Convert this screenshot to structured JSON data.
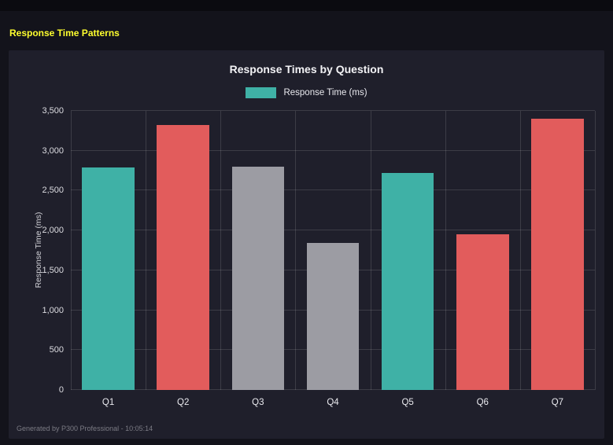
{
  "page": {
    "title": "Response Time Patterns",
    "footer": "Generated by P300 Professional - 10:05:14"
  },
  "colors": {
    "page_bg": "#13131b",
    "panel_bg": "#1f1f2b",
    "title_yellow": "#ffff2e",
    "teal": "#3fb1a6",
    "red": "#e25c5c",
    "gray": "#9c9ca3"
  },
  "chart_data": {
    "type": "bar",
    "title": "Response Times by Question",
    "legend": "Response Time (ms)",
    "legend_position": "top",
    "ylabel": "Response Time (ms)",
    "xlabel": "",
    "categories": [
      "Q1",
      "Q2",
      "Q3",
      "Q4",
      "Q5",
      "Q6",
      "Q7"
    ],
    "values": [
      2790,
      3320,
      2800,
      1840,
      2720,
      1950,
      3400
    ],
    "bar_colors": [
      "#3fb1a6",
      "#e25c5c",
      "#9c9ca3",
      "#9c9ca3",
      "#3fb1a6",
      "#e25c5c",
      "#e25c5c"
    ],
    "ylim": [
      0,
      3500
    ],
    "ytick_step": 500,
    "ytick_labels": [
      "0",
      "500",
      "1,000",
      "1,500",
      "2,000",
      "2,500",
      "3,000",
      "3,500"
    ],
    "grid": true
  }
}
